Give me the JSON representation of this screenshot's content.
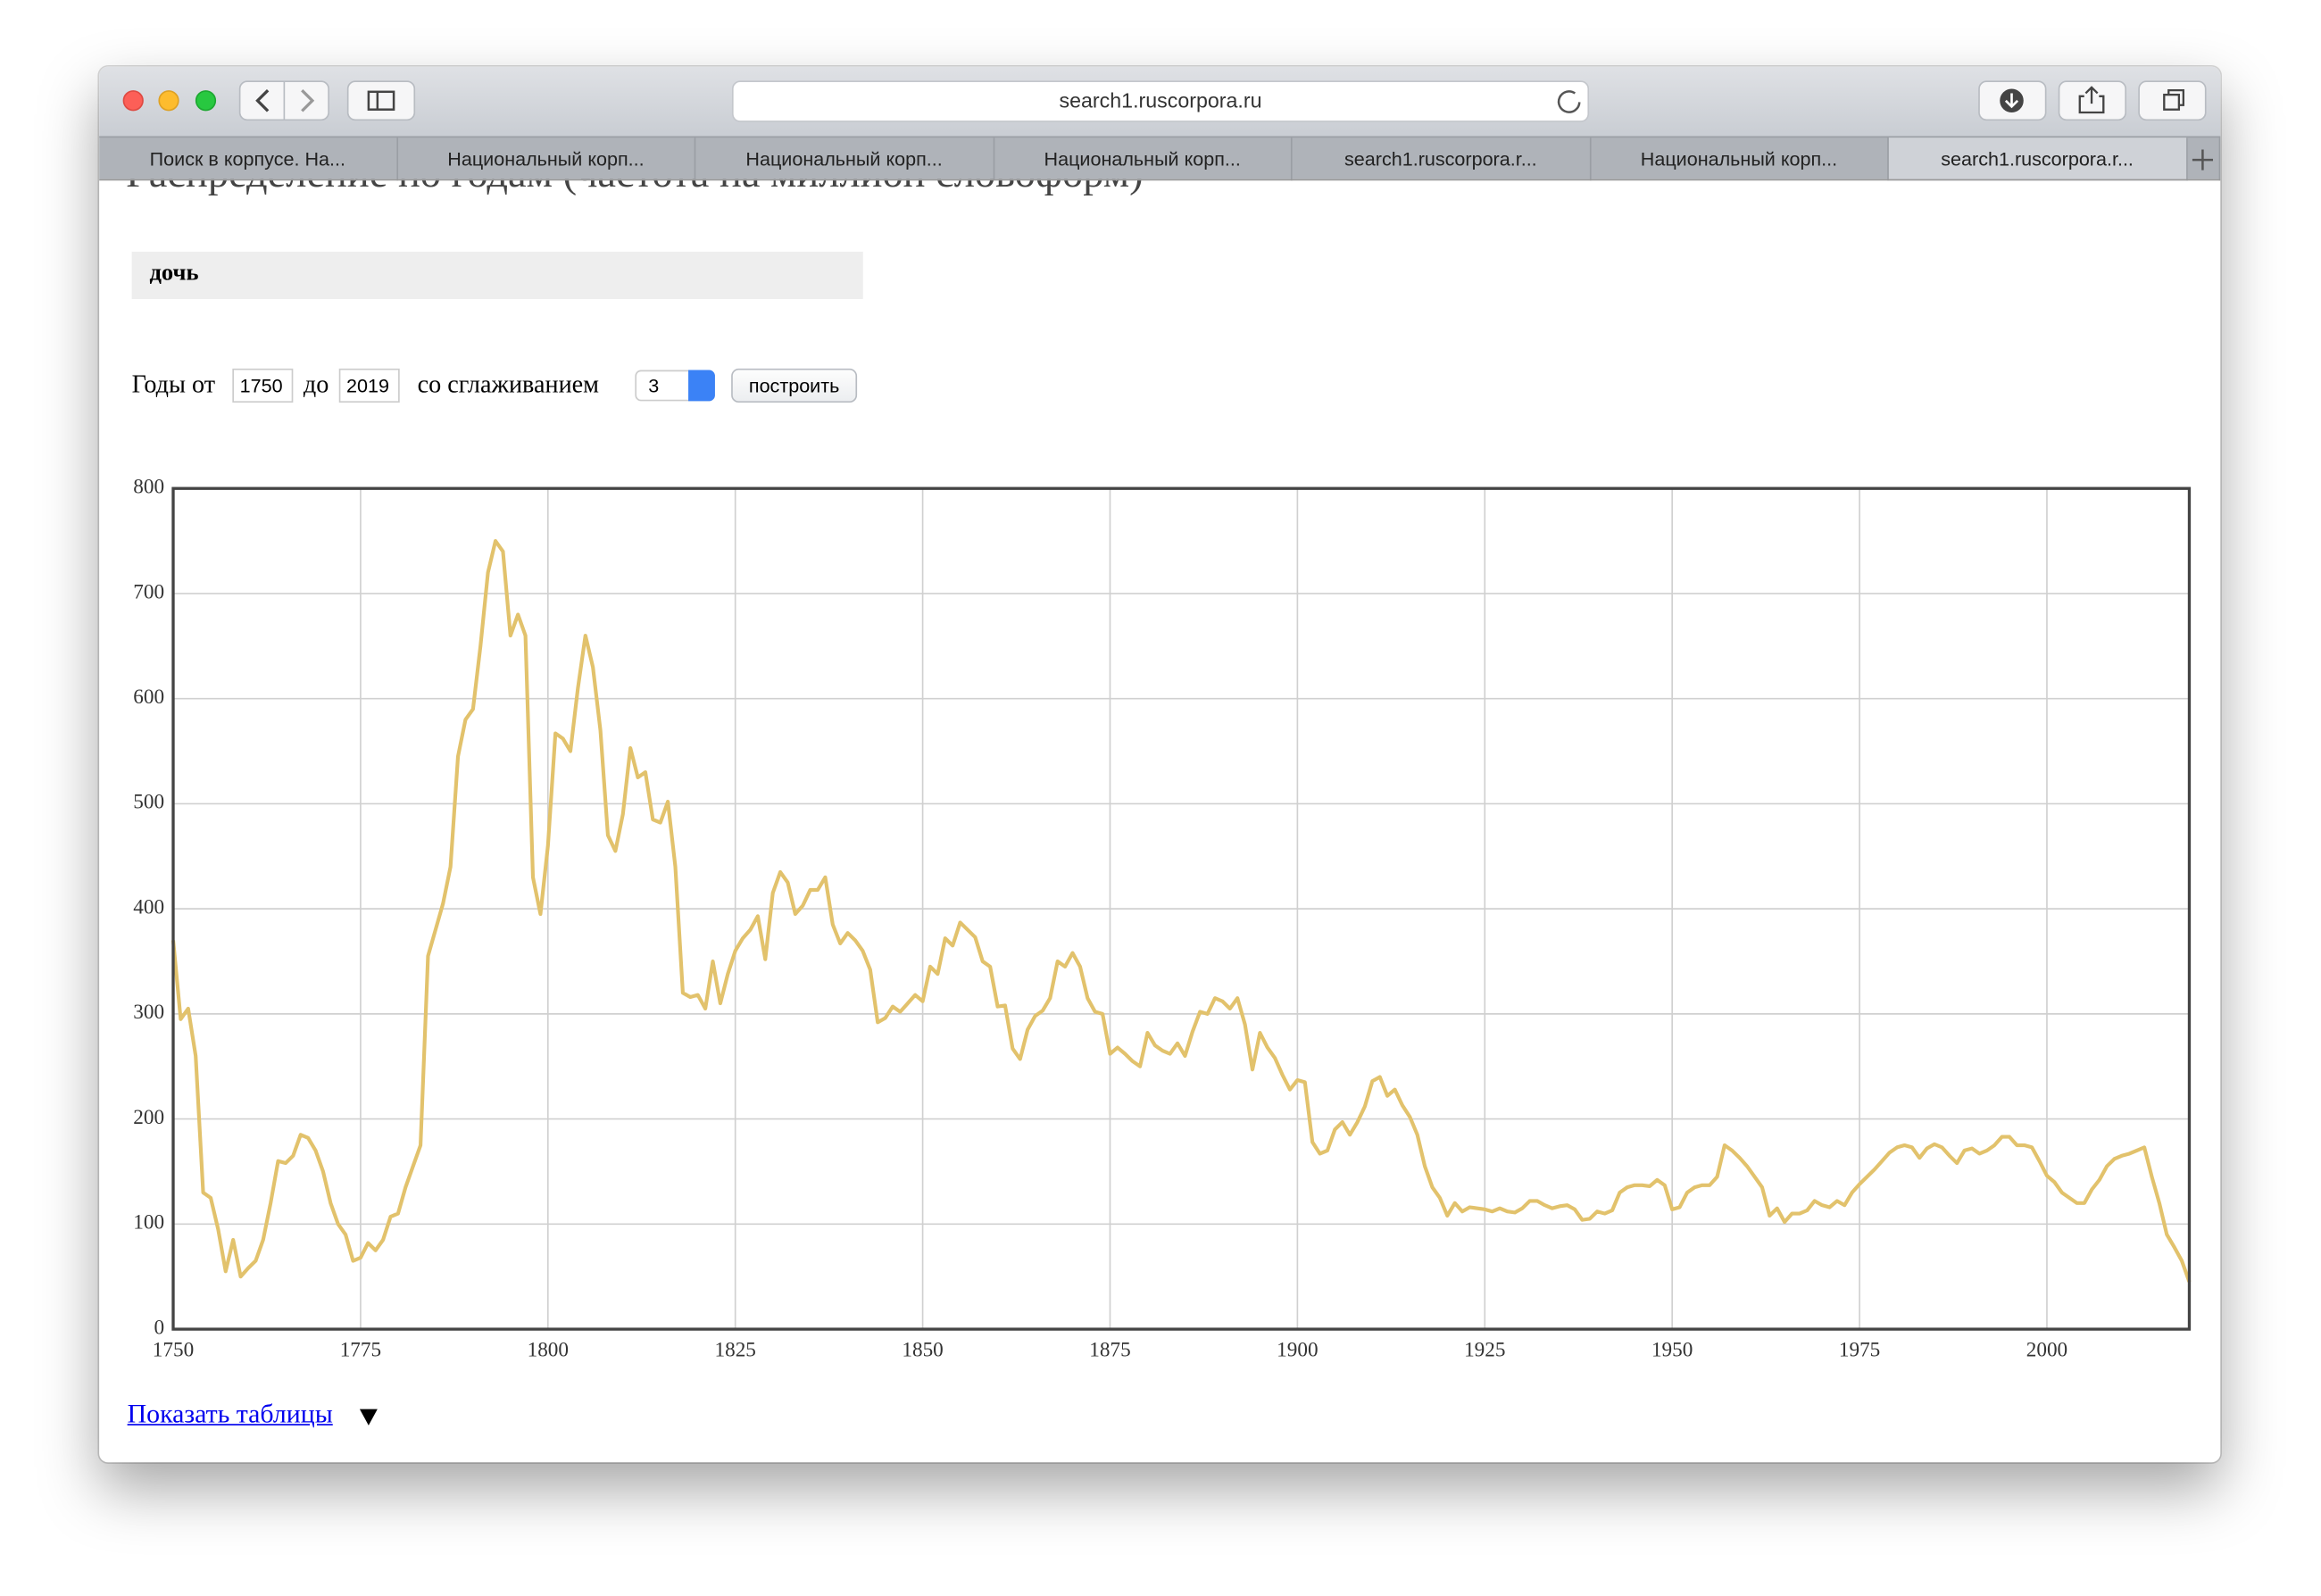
{
  "browser": {
    "url": "search1.ruscorpora.ru",
    "tabs": [
      "Поиск в корпусе. На...",
      "Национальный корп...",
      "Национальный корп...",
      "Национальный корп...",
      "search1.ruscorpora.r...",
      "Национальный корп...",
      "search1.ruscorpora.r..."
    ]
  },
  "page": {
    "heading": "Распределение по годам (частота на миллион словоформ)",
    "query": "дочь",
    "years_from_label": "Годы от",
    "year_from": "1750",
    "years_to_label": "до",
    "year_to": "2019",
    "smoothing_label": "со сглаживанием",
    "smoothing": "3",
    "build_button": "построить",
    "show_tables": "Показать таблицы"
  },
  "chart_data": {
    "type": "line",
    "color": "#e2c26c",
    "grid": true,
    "xlim": [
      1750,
      2019
    ],
    "ylim": [
      0,
      800
    ],
    "xticks": [
      1750,
      1775,
      1800,
      1825,
      1850,
      1875,
      1900,
      1925,
      1950,
      1975,
      2000
    ],
    "yticks": [
      0,
      100,
      200,
      300,
      400,
      500,
      600,
      700,
      800
    ],
    "x": [
      1750,
      1751,
      1752,
      1753,
      1754,
      1755,
      1756,
      1757,
      1758,
      1759,
      1760,
      1761,
      1762,
      1763,
      1764,
      1765,
      1766,
      1767,
      1768,
      1769,
      1770,
      1771,
      1772,
      1773,
      1774,
      1775,
      1776,
      1777,
      1778,
      1779,
      1780,
      1781,
      1782,
      1783,
      1784,
      1785,
      1786,
      1787,
      1788,
      1789,
      1790,
      1791,
      1792,
      1793,
      1794,
      1795,
      1796,
      1797,
      1798,
      1799,
      1800,
      1801,
      1802,
      1803,
      1804,
      1805,
      1806,
      1807,
      1808,
      1809,
      1810,
      1811,
      1812,
      1813,
      1814,
      1815,
      1816,
      1817,
      1818,
      1819,
      1820,
      1821,
      1822,
      1823,
      1824,
      1825,
      1826,
      1827,
      1828,
      1829,
      1830,
      1831,
      1832,
      1833,
      1834,
      1835,
      1836,
      1837,
      1838,
      1839,
      1840,
      1841,
      1842,
      1843,
      1844,
      1845,
      1846,
      1847,
      1848,
      1849,
      1850,
      1851,
      1852,
      1853,
      1854,
      1855,
      1856,
      1857,
      1858,
      1859,
      1860,
      1861,
      1862,
      1863,
      1864,
      1865,
      1866,
      1867,
      1868,
      1869,
      1870,
      1871,
      1872,
      1873,
      1874,
      1875,
      1876,
      1877,
      1878,
      1879,
      1880,
      1881,
      1882,
      1883,
      1884,
      1885,
      1886,
      1887,
      1888,
      1889,
      1890,
      1891,
      1892,
      1893,
      1894,
      1895,
      1896,
      1897,
      1898,
      1899,
      1900,
      1901,
      1902,
      1903,
      1904,
      1905,
      1906,
      1907,
      1908,
      1909,
      1910,
      1911,
      1912,
      1913,
      1914,
      1915,
      1916,
      1917,
      1918,
      1919,
      1920,
      1921,
      1922,
      1923,
      1924,
      1925,
      1926,
      1927,
      1928,
      1929,
      1930,
      1931,
      1932,
      1933,
      1934,
      1935,
      1936,
      1937,
      1938,
      1939,
      1940,
      1941,
      1942,
      1943,
      1944,
      1945,
      1946,
      1947,
      1948,
      1949,
      1950,
      1951,
      1952,
      1953,
      1954,
      1955,
      1956,
      1957,
      1958,
      1959,
      1960,
      1961,
      1962,
      1963,
      1964,
      1965,
      1966,
      1967,
      1968,
      1969,
      1970,
      1971,
      1972,
      1973,
      1974,
      1975,
      1976,
      1977,
      1978,
      1979,
      1980,
      1981,
      1982,
      1983,
      1984,
      1985,
      1986,
      1987,
      1988,
      1989,
      1990,
      1991,
      1992,
      1993,
      1994,
      1995,
      1996,
      1997,
      1998,
      1999,
      2000,
      2001,
      2002,
      2003,
      2004,
      2005,
      2006,
      2007,
      2008,
      2009,
      2010,
      2011,
      2012,
      2013,
      2014,
      2015,
      2016,
      2017,
      2018,
      2019
    ],
    "values": [
      370,
      295,
      305,
      260,
      130,
      125,
      95,
      55,
      85,
      50,
      58,
      65,
      85,
      120,
      160,
      158,
      165,
      185,
      182,
      170,
      150,
      120,
      100,
      90,
      65,
      68,
      82,
      75,
      85,
      107,
      110,
      135,
      155,
      175,
      355,
      380,
      405,
      440,
      545,
      580,
      590,
      650,
      720,
      750,
      740,
      660,
      680,
      660,
      430,
      395,
      460,
      567,
      562,
      550,
      610,
      660,
      630,
      570,
      470,
      455,
      490,
      553,
      525,
      530,
      485,
      482,
      502,
      440,
      320,
      316,
      318,
      305,
      350,
      310,
      338,
      360,
      372,
      380,
      393,
      352,
      415,
      435,
      425,
      395,
      403,
      418,
      418,
      430,
      385,
      367,
      377,
      370,
      360,
      342,
      292,
      296,
      307,
      302,
      310,
      318,
      312,
      345,
      338,
      372,
      365,
      387,
      380,
      373,
      350,
      345,
      307,
      308,
      267,
      257,
      285,
      298,
      303,
      315,
      350,
      345,
      358,
      345,
      315,
      302,
      300,
      262,
      268,
      262,
      255,
      250,
      282,
      270,
      265,
      262,
      272,
      260,
      283,
      302,
      300,
      315,
      312,
      305,
      315,
      290,
      247,
      282,
      268,
      258,
      242,
      228,
      237,
      235,
      178,
      167,
      170,
      190,
      197,
      185,
      197,
      212,
      236,
      240,
      222,
      228,
      213,
      202,
      185,
      155,
      135,
      125,
      108,
      120,
      112,
      116,
      115,
      114,
      112,
      115,
      112,
      111,
      115,
      122,
      122,
      118,
      115,
      117,
      118,
      114,
      104,
      105,
      112,
      110,
      113,
      130,
      135,
      137,
      137,
      136,
      142,
      137,
      114,
      116,
      130,
      135,
      137,
      137,
      145,
      175,
      170,
      163,
      155,
      145,
      135,
      108,
      115,
      102,
      110,
      110,
      113,
      122,
      118,
      116,
      122,
      118,
      130,
      138,
      145,
      152,
      160,
      168,
      173,
      175,
      173,
      163,
      172,
      176,
      173,
      165,
      158,
      170,
      172,
      167,
      170,
      175,
      183,
      183,
      175,
      175,
      173,
      160,
      146,
      140,
      130,
      125,
      120,
      120,
      133,
      142,
      155,
      162,
      165,
      167,
      170,
      173,
      145,
      120,
      90,
      78,
      65,
      45
    ]
  }
}
